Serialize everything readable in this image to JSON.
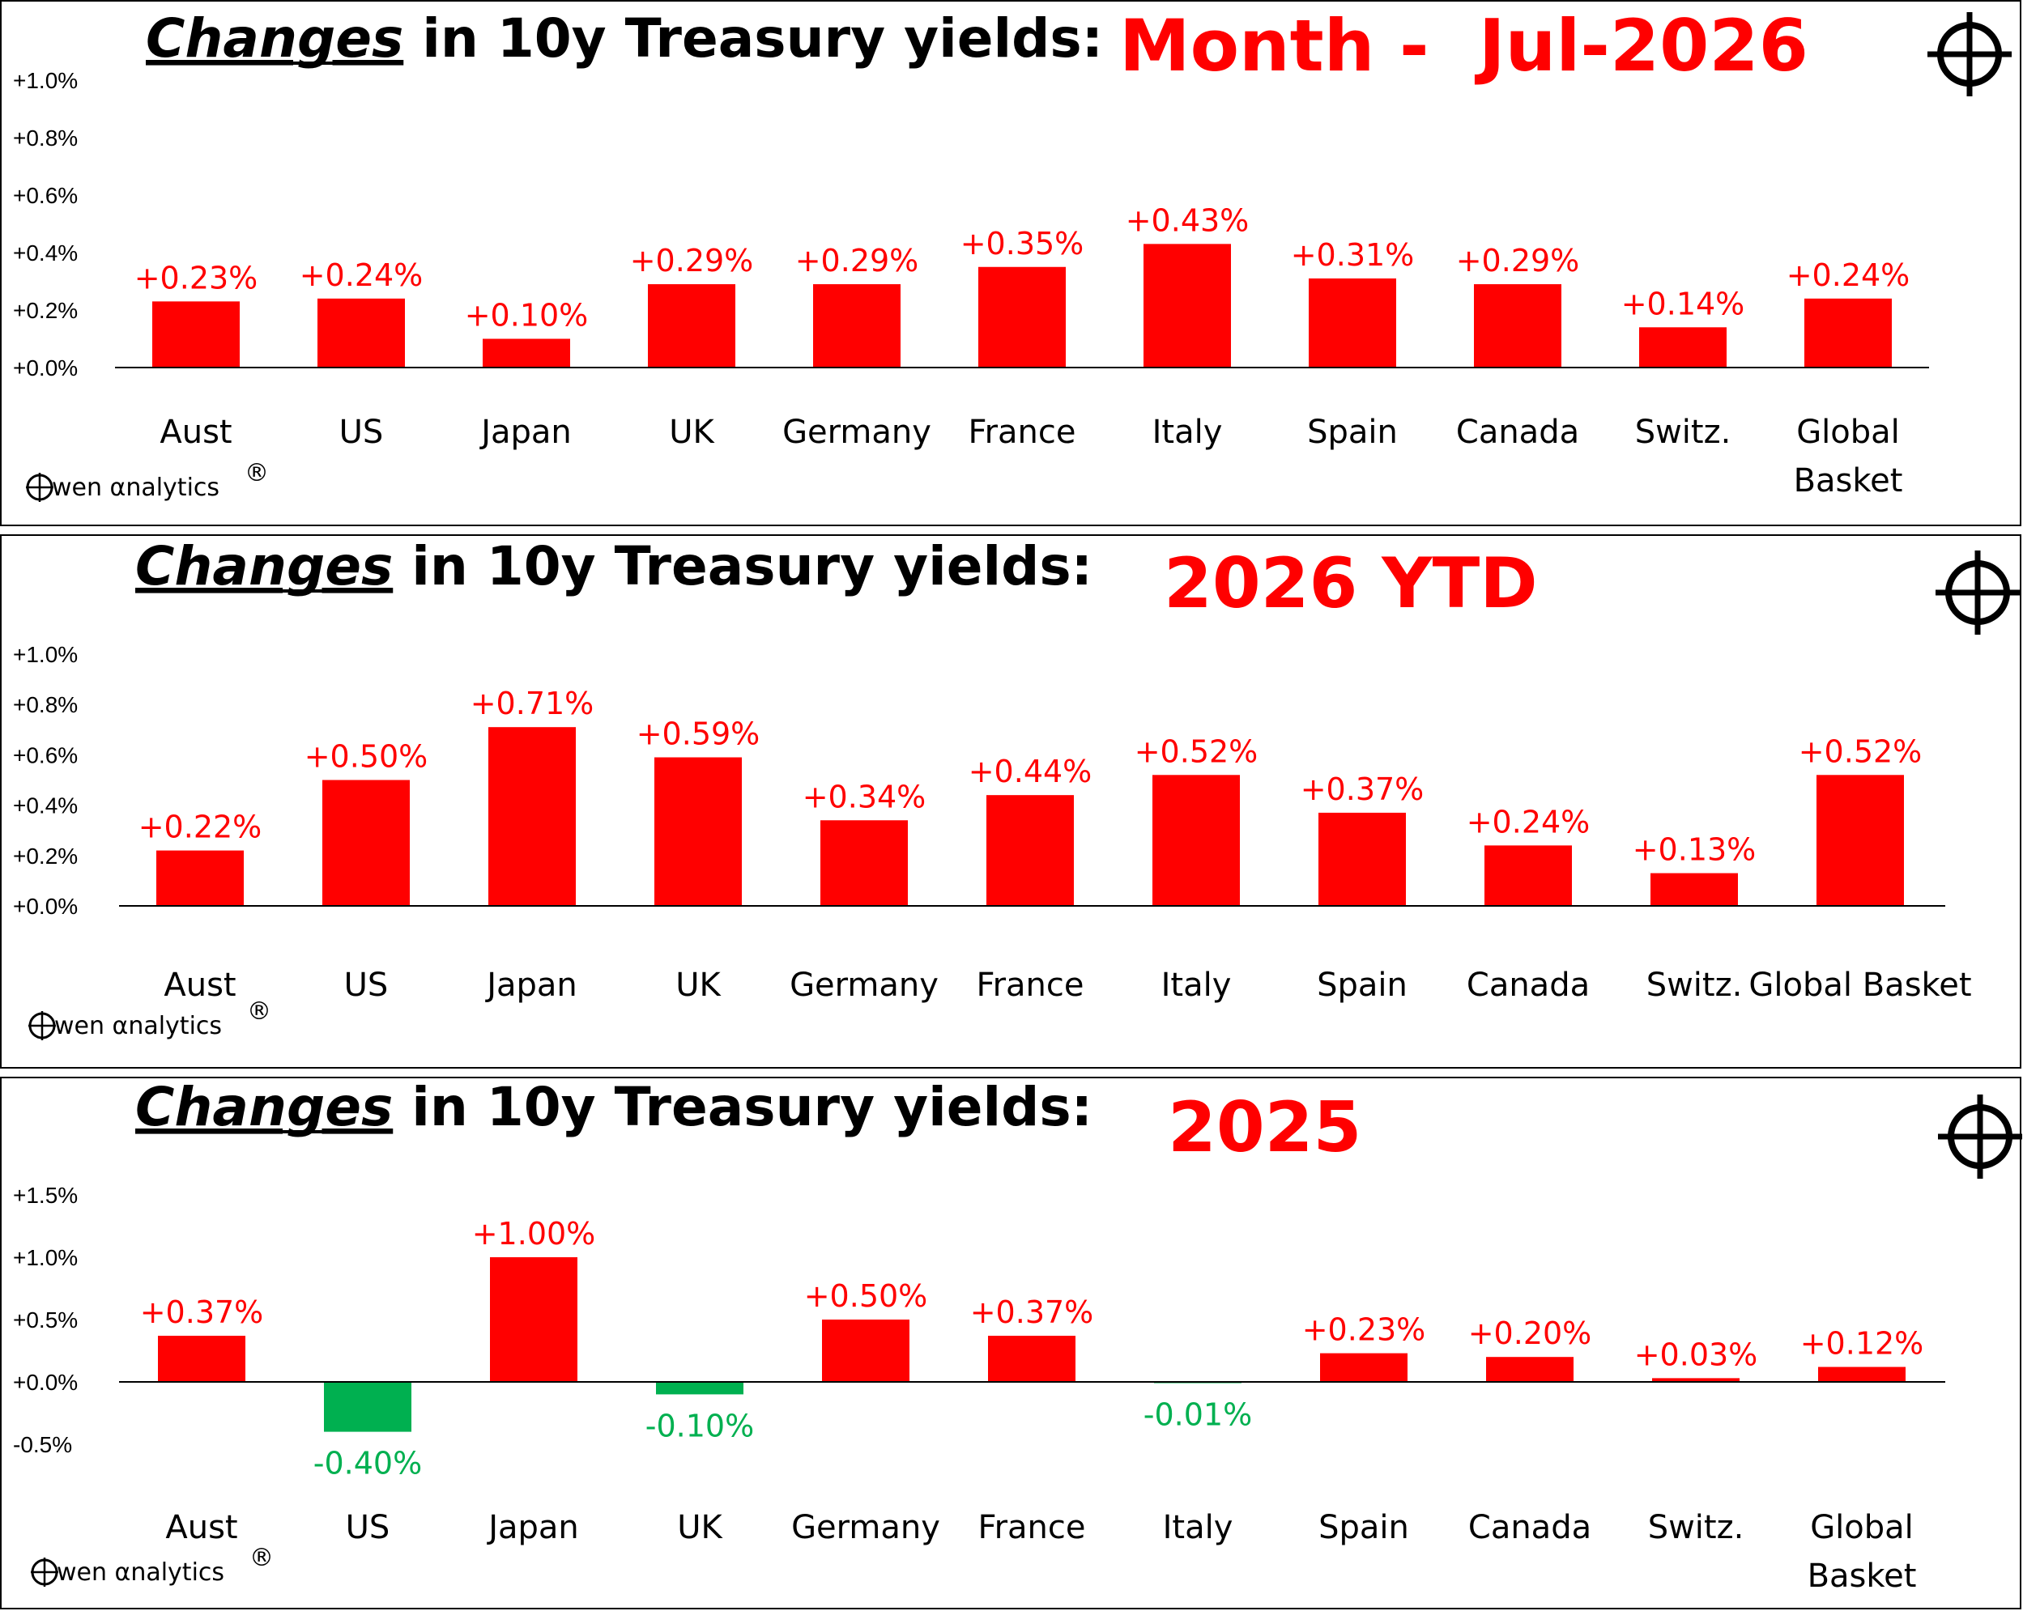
{
  "colors": {
    "positive": "#ff0000",
    "negative": "#00b050",
    "period_title": "#ff0000",
    "axis": "#000000"
  },
  "brand": {
    "logo_text": "Owen αnalytics",
    "mark": "®",
    "icon": "crosshair-icon"
  },
  "chart_data": [
    {
      "type": "bar",
      "title_emph": "Changes",
      "title_rest": " in 10y Treasury yields:",
      "period": "Month -  Jul-2026",
      "categories": [
        "Aust",
        "US",
        "Japan",
        "UK",
        "Germany",
        "France",
        "Italy",
        "Spain",
        "Canada",
        "Switz.",
        "Global Basket"
      ],
      "category_lines": [
        [
          "Aust"
        ],
        [
          "US"
        ],
        [
          "Japan"
        ],
        [
          "UK"
        ],
        [
          "Germany"
        ],
        [
          "France"
        ],
        [
          "Italy"
        ],
        [
          "Spain"
        ],
        [
          "Canada"
        ],
        [
          "Switz."
        ],
        [
          "Global",
          "Basket"
        ]
      ],
      "values": [
        0.23,
        0.24,
        0.1,
        0.29,
        0.29,
        0.35,
        0.43,
        0.31,
        0.29,
        0.14,
        0.24
      ],
      "value_labels": [
        "+0.23%",
        "+0.24%",
        "+0.10%",
        "+0.29%",
        "+0.29%",
        "+0.35%",
        "+0.43%",
        "+0.31%",
        "+0.29%",
        "+0.14%",
        "+0.24%"
      ],
      "yticks": [
        {
          "value": 0.0,
          "label": "+0.0%"
        },
        {
          "value": 0.2,
          "label": "+0.2%"
        },
        {
          "value": 0.4,
          "label": "+0.4%"
        },
        {
          "value": 0.6,
          "label": "+0.6%"
        },
        {
          "value": 0.8,
          "label": "+0.8%"
        },
        {
          "value": 1.0,
          "label": "+1.0%"
        }
      ],
      "ylim": [
        0.0,
        1.0
      ],
      "grid": false,
      "legend": "none"
    },
    {
      "type": "bar",
      "title_emph": "Changes",
      "title_rest": " in 10y Treasury yields:",
      "period": "2026 YTD",
      "categories": [
        "Aust",
        "US",
        "Japan",
        "UK",
        "Germany",
        "France",
        "Italy",
        "Spain",
        "Canada",
        "Switz.",
        "Global Basket"
      ],
      "category_lines": [
        [
          "Aust"
        ],
        [
          "US"
        ],
        [
          "Japan"
        ],
        [
          "UK"
        ],
        [
          "Germany"
        ],
        [
          "France"
        ],
        [
          "Italy"
        ],
        [
          "Spain"
        ],
        [
          "Canada"
        ],
        [
          "Switz."
        ],
        [
          "Global Basket"
        ]
      ],
      "values": [
        0.22,
        0.5,
        0.71,
        0.59,
        0.34,
        0.44,
        0.52,
        0.37,
        0.24,
        0.13,
        0.52
      ],
      "value_labels": [
        "+0.22%",
        "+0.50%",
        "+0.71%",
        "+0.59%",
        "+0.34%",
        "+0.44%",
        "+0.52%",
        "+0.37%",
        "+0.24%",
        "+0.13%",
        "+0.52%"
      ],
      "yticks": [
        {
          "value": 0.0,
          "label": "+0.0%"
        },
        {
          "value": 0.2,
          "label": "+0.2%"
        },
        {
          "value": 0.4,
          "label": "+0.4%"
        },
        {
          "value": 0.6,
          "label": "+0.6%"
        },
        {
          "value": 0.8,
          "label": "+0.8%"
        },
        {
          "value": 1.0,
          "label": "+1.0%"
        }
      ],
      "ylim": [
        0.0,
        1.0
      ],
      "grid": false,
      "legend": "none"
    },
    {
      "type": "bar",
      "title_emph": "Changes",
      "title_rest": " in 10y Treasury yields:",
      "period": "2025",
      "categories": [
        "Aust",
        "US",
        "Japan",
        "UK",
        "Germany",
        "France",
        "Italy",
        "Spain",
        "Canada",
        "Switz.",
        "Global Basket"
      ],
      "category_lines": [
        [
          "Aust"
        ],
        [
          "US"
        ],
        [
          "Japan"
        ],
        [
          "UK"
        ],
        [
          "Germany"
        ],
        [
          "France"
        ],
        [
          "Italy"
        ],
        [
          "Spain"
        ],
        [
          "Canada"
        ],
        [
          "Switz."
        ],
        [
          "Global",
          "Basket"
        ]
      ],
      "values": [
        0.37,
        -0.4,
        1.0,
        -0.1,
        0.5,
        0.37,
        -0.01,
        0.23,
        0.2,
        0.03,
        0.12
      ],
      "value_labels": [
        "+0.37%",
        "-0.40%",
        "+1.00%",
        "-0.10%",
        "+0.50%",
        "+0.37%",
        "-0.01%",
        "+0.23%",
        "+0.20%",
        "+0.03%",
        "+0.12%"
      ],
      "yticks": [
        {
          "value": -0.5,
          "label": "-0.5%",
          "negative": true
        },
        {
          "value": 0.0,
          "label": "+0.0%"
        },
        {
          "value": 0.5,
          "label": "+0.5%"
        },
        {
          "value": 1.0,
          "label": "+1.0%"
        },
        {
          "value": 1.5,
          "label": "+1.5%"
        }
      ],
      "ylim": [
        -0.5,
        1.5
      ],
      "grid": false,
      "legend": "none"
    }
  ]
}
